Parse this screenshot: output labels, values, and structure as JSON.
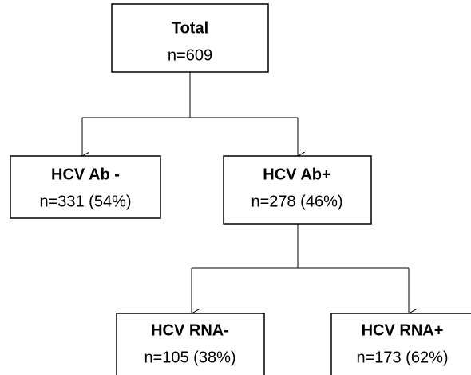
{
  "nodes": [
    {
      "label": "Total",
      "detail": "n=609"
    },
    {
      "label": "HCV Ab -",
      "detail": "n=331 (54%)"
    },
    {
      "label": "HCV Ab+",
      "detail": "n=278 (46%)"
    },
    {
      "label": "HCV RNA-",
      "detail": "n=105 (38%)"
    },
    {
      "label": "HCV RNA+",
      "detail": "n=173 (62%)"
    }
  ]
}
